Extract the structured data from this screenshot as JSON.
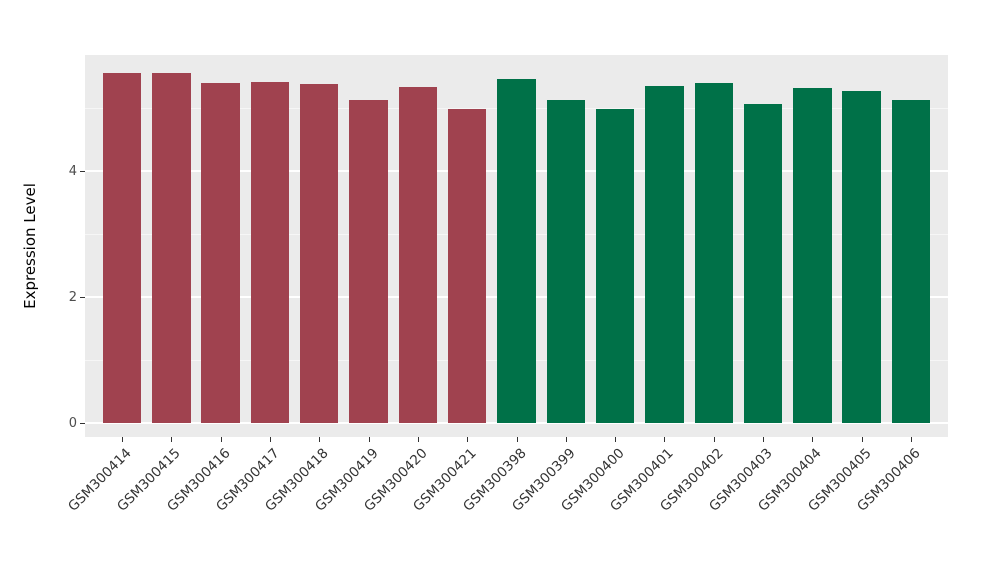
{
  "chart_data": {
    "type": "bar",
    "title": "",
    "xlabel": "",
    "ylabel": "Expression Level",
    "ylim": [
      0,
      5.84
    ],
    "yticks": [
      0,
      2,
      4
    ],
    "yticks_minor": [
      1,
      3,
      5
    ],
    "grid": "on",
    "legend": "none",
    "categories": [
      "GSM300414",
      "GSM300415",
      "GSM300416",
      "GSM300417",
      "GSM300418",
      "GSM300419",
      "GSM300420",
      "GSM300421",
      "GSM300398",
      "GSM300399",
      "GSM300400",
      "GSM300401",
      "GSM300402",
      "GSM300403",
      "GSM300404",
      "GSM300405",
      "GSM300406"
    ],
    "values": [
      5.55,
      5.55,
      5.4,
      5.42,
      5.38,
      5.13,
      5.33,
      4.98,
      5.46,
      5.13,
      4.98,
      5.35,
      5.4,
      5.06,
      5.32,
      5.27,
      5.12
    ],
    "bar_colors": [
      "#A0424F",
      "#A0424F",
      "#A0424F",
      "#A0424F",
      "#A0424F",
      "#A0424F",
      "#A0424F",
      "#A0424F",
      "#007148",
      "#007148",
      "#007148",
      "#007148",
      "#007148",
      "#007148",
      "#007148",
      "#007148",
      "#007148"
    ]
  },
  "colors": {
    "panel_background": "#EBEBEB",
    "page_background": "#FFFFFF",
    "gridline": "#FFFFFF",
    "group_red": "#A0424F",
    "group_green": "#007148",
    "axis_text": "#4D4D4D"
  }
}
